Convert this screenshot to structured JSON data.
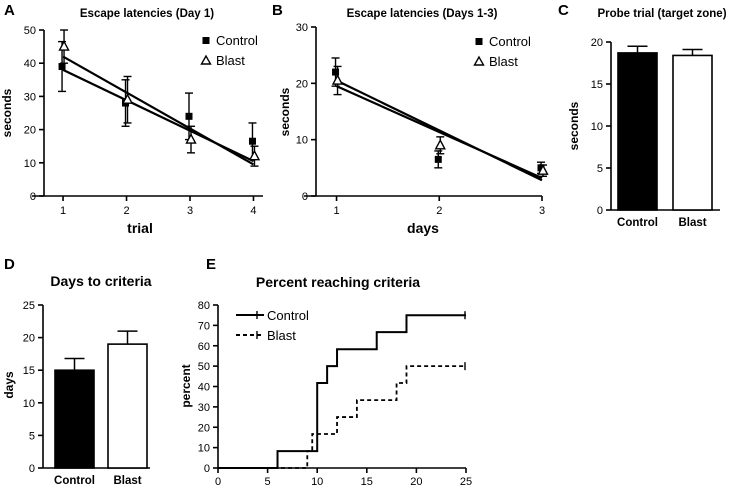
{
  "panels": {
    "A": {
      "letter": "A"
    },
    "B": {
      "letter": "B"
    },
    "C": {
      "letter": "C"
    },
    "D": {
      "letter": "D"
    },
    "E": {
      "letter": "E"
    }
  },
  "chart_data": [
    {
      "id": "A",
      "type": "scatter",
      "title": "Escape latencies (Day 1)",
      "xlabel": "trial",
      "ylabel": "seconds",
      "xlim": [
        0.7,
        4.15
      ],
      "ylim": [
        0,
        50
      ],
      "xticks": [
        1,
        2,
        3,
        4
      ],
      "yticks": [
        0,
        10,
        20,
        30,
        40,
        50
      ],
      "grid": false,
      "legend": "top-right",
      "series": [
        {
          "name": "Control",
          "marker": "square",
          "x": [
            1,
            2,
            3,
            4
          ],
          "y": [
            39,
            28,
            24,
            16.5
          ],
          "err": [
            7.5,
            7,
            7,
            5.5
          ],
          "fit": [
            38,
            10.5
          ]
        },
        {
          "name": "Blast",
          "marker": "triangle",
          "x": [
            1,
            2,
            3,
            4
          ],
          "y": [
            45,
            29,
            17,
            12
          ],
          "err": [
            5,
            7,
            4,
            3
          ],
          "fit": [
            42,
            9.5
          ]
        }
      ]
    },
    {
      "id": "B",
      "type": "scatter",
      "title": "Escape latencies (Days 1-3)",
      "xlabel": "days",
      "ylabel": "seconds",
      "xlim": [
        0.8,
        3.0
      ],
      "ylim": [
        0,
        30
      ],
      "xticks": [
        1,
        2,
        3
      ],
      "yticks": [
        0,
        10,
        20,
        30
      ],
      "grid": false,
      "legend": "top-right",
      "series": [
        {
          "name": "Control",
          "marker": "square",
          "x": [
            1,
            2,
            3
          ],
          "y": [
            22,
            6.5,
            5
          ],
          "err": [
            2.5,
            1.5,
            1
          ],
          "fit": [
            19.5,
            3.2
          ]
        },
        {
          "name": "Blast",
          "marker": "triangle",
          "x": [
            1,
            2,
            3
          ],
          "y": [
            20.5,
            9,
            4.5
          ],
          "err": [
            2.5,
            1.5,
            1
          ],
          "fit": [
            20.5,
            2.8
          ]
        }
      ]
    },
    {
      "id": "C",
      "type": "bar",
      "title": "Probe trial (target zone)",
      "xlabel": "",
      "ylabel": "seconds",
      "ylim": [
        0,
        20
      ],
      "yticks": [
        0,
        5,
        10,
        15,
        20
      ],
      "categories": [
        "Control",
        "Blast"
      ],
      "values": [
        18.7,
        18.4
      ],
      "errors": [
        0.8,
        0.7
      ],
      "fills": [
        "#000000",
        "#ffffff"
      ]
    },
    {
      "id": "D",
      "type": "bar",
      "title": "Days to criteria",
      "xlabel": "",
      "ylabel": "days",
      "ylim": [
        0,
        25
      ],
      "yticks": [
        0,
        5,
        10,
        15,
        20,
        25
      ],
      "categories": [
        "Control",
        "Blast"
      ],
      "values": [
        15,
        19
      ],
      "errors": [
        1.8,
        2
      ],
      "fills": [
        "#000000",
        "#ffffff"
      ]
    },
    {
      "id": "E",
      "type": "line",
      "title": "Percent reaching criteria",
      "xlabel": "",
      "ylabel": "percent",
      "xlim": [
        0,
        25
      ],
      "ylim": [
        0,
        80
      ],
      "xticks": [
        0,
        5,
        10,
        15,
        20,
        25
      ],
      "yticks": [
        0,
        10,
        20,
        30,
        40,
        50,
        60,
        70,
        80
      ],
      "legend": "top-left",
      "series": [
        {
          "name": "Control",
          "style": "solid",
          "steps": [
            [
              0,
              0
            ],
            [
              6,
              8.3
            ],
            [
              10,
              41.7
            ],
            [
              11,
              50
            ],
            [
              12,
              58.3
            ],
            [
              16,
              66.7
            ],
            [
              19,
              75
            ],
            [
              25,
              75
            ]
          ]
        },
        {
          "name": "Blast",
          "style": "dashed",
          "steps": [
            [
              0,
              0
            ],
            [
              9,
              8.3
            ],
            [
              9.5,
              16.7
            ],
            [
              12,
              25
            ],
            [
              14,
              33.3
            ],
            [
              18,
              41.7
            ],
            [
              19,
              50
            ],
            [
              25,
              50
            ]
          ]
        }
      ]
    }
  ]
}
